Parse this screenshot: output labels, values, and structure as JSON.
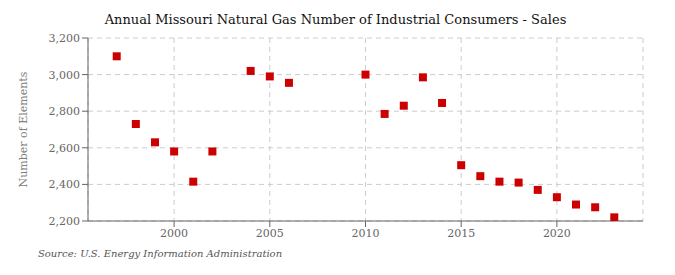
{
  "chart_data": {
    "type": "scatter",
    "title": "Annual Missouri Natural Gas Number of Industrial Consumers - Sales",
    "ylabel": "Number of Elements",
    "source": "Source: U.S. Energy Information Administration",
    "color": "#cc0000",
    "marker": "square",
    "grid": true,
    "x": [
      1997,
      1998,
      1999,
      2000,
      2001,
      2002,
      2004,
      2005,
      2006,
      2010,
      2011,
      2012,
      2013,
      2014,
      2015,
      2016,
      2017,
      2018,
      2019,
      2020,
      2021,
      2022,
      2023
    ],
    "values": [
      3100,
      2730,
      2630,
      2580,
      2415,
      2580,
      3020,
      2990,
      2955,
      3000,
      2785,
      2830,
      2985,
      2845,
      2505,
      2445,
      2415,
      2410,
      2370,
      2330,
      2290,
      2275,
      2220
    ],
    "xlim": [
      1995.5,
      2024.5
    ],
    "xticks": [
      2000,
      2005,
      2010,
      2015,
      2020
    ],
    "ylim": [
      2200,
      3200
    ],
    "yticks": [
      {
        "value": 2200,
        "label": "2,200"
      },
      {
        "value": 2400,
        "label": "2,400"
      },
      {
        "value": 2600,
        "label": "2,600"
      },
      {
        "value": 2800,
        "label": "2,800"
      },
      {
        "value": 3000,
        "label": "3,000"
      },
      {
        "value": 3200,
        "label": "3,200"
      }
    ]
  }
}
